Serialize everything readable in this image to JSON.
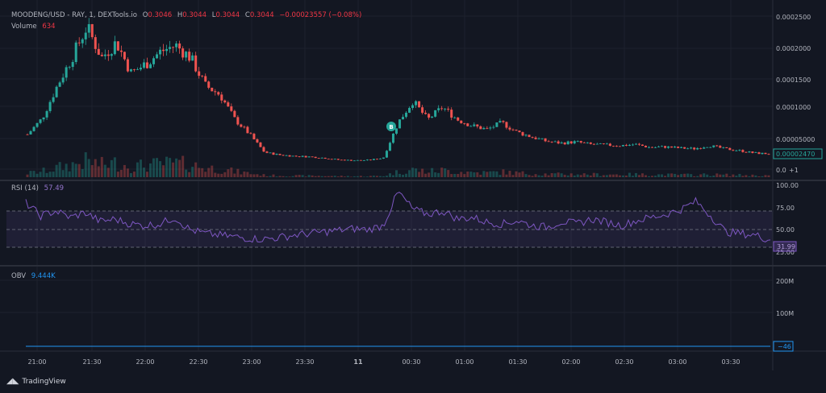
{
  "header": {
    "symbol": "MOODENG/USD - RAY, 1, DEXTools.io",
    "o_label": "O",
    "o_value": "0.3046",
    "h_label": "H",
    "h_value": "0.3044",
    "l_label": "L",
    "l_value": "0.3044",
    "c_label": "C",
    "c_value": "0.3044",
    "change": "−0.00023557 (−0.08%)",
    "volume_label": "Volume",
    "volume_value": "634"
  },
  "rsi": {
    "label": "RSI (14)",
    "value": "57.49",
    "last_tag": "31.99"
  },
  "obv": {
    "label": "OBV",
    "value": "9.444K",
    "last_tag": "−46"
  },
  "price_axis": [
    "0.0002500",
    "0.0002000",
    "0.0001500",
    "0.0001000",
    "0.00005000"
  ],
  "price_tag": "0.00002470",
  "price_zero": "0.0",
  "price_zero_badge": "+1",
  "rsi_axis": [
    "100.00",
    "75.00",
    "50.00",
    "25.00"
  ],
  "obv_axis": [
    "200M",
    "100M"
  ],
  "time_axis": [
    "21:00",
    "21:30",
    "22:00",
    "22:30",
    "23:00",
    "23:30",
    "11",
    "00:30",
    "01:00",
    "01:30",
    "02:00",
    "02:30",
    "03:00",
    "03:30"
  ],
  "buy_marker": "B",
  "brand": "TradingView",
  "colors": {
    "up": "#26a69a",
    "down": "#ef5350",
    "rsi": "#7e57c2",
    "obv": "#2196f3",
    "bg": "#131722"
  },
  "chart_data": {
    "type": "line",
    "xlabel": "",
    "ylabel": "",
    "series": [
      {
        "values": [
          5.6e-05,
          8.2e-05,
          0.000134,
          0.00018,
          0.00023,
          0.00018,
          0.000205,
          0.000155,
          0.00017,
          0.00019,
          0.0002,
          0.00018,
          0.000135,
          0.00012,
          8e-05,
          5.6e-05,
          2.7e-05,
          2.3e-05,
          2.1e-05,
          2e-05,
          1.8e-05,
          1.5e-05,
          1.4e-05,
          1.45e-05,
          1.8e-05,
          7.5e-05,
          0.00011,
          8e-05,
          0.0001,
          8e-05,
          7e-05,
          6.4e-05,
          7.5e-05,
          6e-05,
          5.2e-05,
          4.5e-05,
          4.2e-05,
          4.4e-05,
          4e-05,
          3.9e-05,
          3.8e-05,
          4e-05,
          3.5e-05,
          3.6e-05,
          3.4e-05,
          3.3e-05,
          3.8e-05,
          3.3e-05,
          3e-05,
          2.6e-05,
          2.47e-05
        ]
      },
      {
        "values": [
          78,
          62,
          68,
          60,
          66,
          55,
          58,
          52,
          50,
          52,
          60,
          45,
          40,
          38,
          36,
          34,
          33,
          35,
          38,
          40,
          42,
          44,
          46,
          45,
          50,
          92,
          70,
          64,
          68,
          58,
          60,
          54,
          52,
          56,
          50,
          48,
          55,
          52,
          58,
          54,
          50,
          56,
          60,
          64,
          70,
          80,
          62,
          42,
          40,
          38,
          32
        ]
      },
      {
        "values": [
          0,
          0,
          0,
          0,
          0,
          0,
          0,
          0,
          0,
          0,
          0,
          0,
          0,
          0,
          0,
          0,
          0,
          0,
          0,
          0,
          0,
          0,
          0,
          0,
          0,
          0,
          0,
          0,
          0,
          0,
          0,
          0,
          0,
          0,
          0,
          0,
          0,
          0,
          0,
          0,
          0,
          0,
          0,
          0,
          0,
          0,
          0,
          0,
          0,
          0,
          0
        ]
      }
    ],
    "ylim": [
      0,
      0.00026
    ],
    "grid": true
  }
}
